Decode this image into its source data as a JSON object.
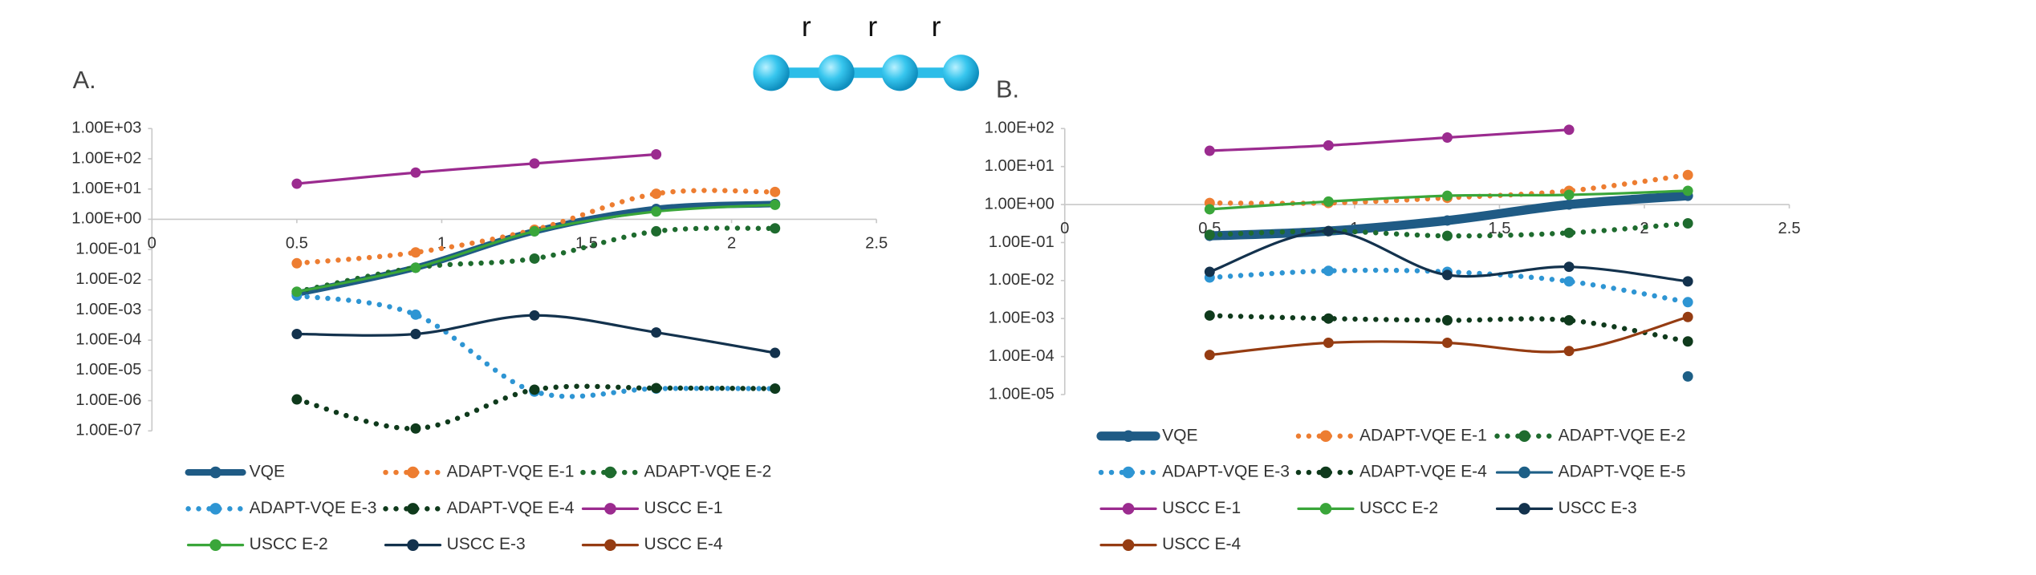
{
  "molecule": {
    "labels": [
      "r",
      "r",
      "r"
    ]
  },
  "chart_data": [
    {
      "type": "line",
      "panel_label": "A.",
      "log_y": true,
      "x": [
        0.5,
        0.91,
        1.32,
        1.74,
        2.15
      ],
      "xlim": [
        0,
        2.5
      ],
      "xticks": [
        0,
        0.5,
        1,
        1.5,
        2,
        2.5
      ],
      "ylim": [
        1e-07,
        1000
      ],
      "yticks": [
        {
          "value": 1e-07,
          "label": "1.00E-07"
        },
        {
          "value": 1e-06,
          "label": "1.00E-06"
        },
        {
          "value": 1e-05,
          "label": "1.00E-05"
        },
        {
          "value": 0.0001,
          "label": "1.00E-04"
        },
        {
          "value": 0.001,
          "label": "1.00E-03"
        },
        {
          "value": 0.01,
          "label": "1.00E-02"
        },
        {
          "value": 0.1,
          "label": "1.00E-01"
        },
        {
          "value": 1,
          "label": "1.00E+00"
        },
        {
          "value": 10,
          "label": "1.00E+01"
        },
        {
          "value": 100,
          "label": "1.00E+02"
        },
        {
          "value": 1000,
          "label": "1.00E+03"
        }
      ],
      "series": [
        {
          "name": "VQE",
          "color": "#1f5b85",
          "style": "solid",
          "width": 5,
          "values": [
            0.0035,
            0.025,
            0.4,
            2.2,
            3.2
          ]
        },
        {
          "name": "ADAPT-VQE E-1",
          "color": "#ed7d31",
          "style": "dotted",
          "width": 4,
          "values": [
            0.035,
            0.08,
            0.45,
            7,
            8
          ]
        },
        {
          "name": "ADAPT-VQE E-2",
          "color": "#1e6b2e",
          "style": "dotted",
          "width": 4,
          "values": [
            0.004,
            0.025,
            0.05,
            0.4,
            0.5
          ]
        },
        {
          "name": "ADAPT-VQE E-3",
          "color": "#2e95d3",
          "style": "dotted",
          "width": 4,
          "values": [
            0.003,
            0.0007,
            2e-06,
            2.5e-06,
            2.5e-06
          ]
        },
        {
          "name": "ADAPT-VQE E-4",
          "color": "#0f3a1c",
          "style": "dotted",
          "width": 4,
          "values": [
            1.1e-06,
            1.2e-07,
            2.3e-06,
            2.6e-06,
            2.5e-06
          ]
        },
        {
          "name": "USCC E-1",
          "color": "#9b2b8f",
          "style": "solid",
          "width": 2,
          "values": [
            15,
            35,
            70,
            140,
            null
          ]
        },
        {
          "name": "USCC E-2",
          "color": "#3aa63a",
          "style": "solid",
          "width": 2,
          "values": [
            0.004,
            0.025,
            0.4,
            1.8,
            3
          ]
        },
        {
          "name": "USCC E-3",
          "color": "#13324d",
          "style": "solid",
          "width": 2,
          "values": [
            0.00016,
            0.00016,
            0.00066,
            0.00018,
            3.8e-05
          ]
        },
        {
          "name": "USCC E-4",
          "color": "#953c12",
          "style": "solid",
          "width": 2,
          "values": [
            null,
            null,
            null,
            null,
            null
          ]
        }
      ]
    },
    {
      "type": "line",
      "panel_label": "B.",
      "log_y": true,
      "x": [
        0.5,
        0.91,
        1.32,
        1.74,
        2.15
      ],
      "xlim": [
        0,
        2.5
      ],
      "xticks": [
        0,
        0.5,
        1,
        1.5,
        2,
        2.5
      ],
      "ylim": [
        1e-05,
        100
      ],
      "yticks": [
        {
          "value": 1e-05,
          "label": "1.00E-05"
        },
        {
          "value": 0.0001,
          "label": "1.00E-04"
        },
        {
          "value": 0.001,
          "label": "1.00E-03"
        },
        {
          "value": 0.01,
          "label": "1.00E-02"
        },
        {
          "value": 0.1,
          "label": "1.00E-01"
        },
        {
          "value": 1,
          "label": "1.00E+00"
        },
        {
          "value": 10,
          "label": "1.00E+01"
        },
        {
          "value": 100,
          "label": "1.00E+02"
        }
      ],
      "series": [
        {
          "name": "VQE",
          "color": "#1f5b85",
          "style": "solid",
          "width": 7,
          "values": [
            0.15,
            0.2,
            0.38,
            1,
            1.7
          ]
        },
        {
          "name": "ADAPT-VQE E-1",
          "color": "#ed7d31",
          "style": "dotted",
          "width": 4,
          "values": [
            1.1,
            1.1,
            1.5,
            2.3,
            6
          ]
        },
        {
          "name": "ADAPT-VQE E-2",
          "color": "#1e6b2e",
          "style": "dotted",
          "width": 4,
          "values": [
            0.16,
            0.2,
            0.15,
            0.18,
            0.32
          ]
        },
        {
          "name": "ADAPT-VQE E-3",
          "color": "#2e95d3",
          "style": "dotted",
          "width": 4,
          "values": [
            0.012,
            0.018,
            0.017,
            0.0095,
            0.0027
          ]
        },
        {
          "name": "ADAPT-VQE E-4",
          "color": "#0f3a1c",
          "style": "dotted",
          "width": 4,
          "values": [
            0.0012,
            0.001,
            0.0009,
            0.0009,
            0.00025
          ]
        },
        {
          "name": "ADAPT-VQE E-5",
          "color": "#1d5f86",
          "style": "solid",
          "width": 2,
          "values": [
            null,
            null,
            null,
            null,
            3e-05
          ]
        },
        {
          "name": "USCC E-1",
          "color": "#9b2b8f",
          "style": "solid",
          "width": 2,
          "values": [
            26,
            36,
            58,
            93,
            null
          ]
        },
        {
          "name": "USCC E-2",
          "color": "#3aa63a",
          "style": "solid",
          "width": 2,
          "values": [
            0.75,
            1.2,
            1.7,
            1.8,
            2.3
          ]
        },
        {
          "name": "USCC E-3",
          "color": "#13324d",
          "style": "solid",
          "width": 2,
          "values": [
            0.017,
            0.2,
            0.014,
            0.023,
            0.0095
          ]
        },
        {
          "name": "USCC E-4",
          "color": "#953c12",
          "style": "solid",
          "width": 2,
          "values": [
            0.00011,
            0.00023,
            0.00023,
            0.00014,
            0.0011
          ]
        }
      ]
    }
  ]
}
